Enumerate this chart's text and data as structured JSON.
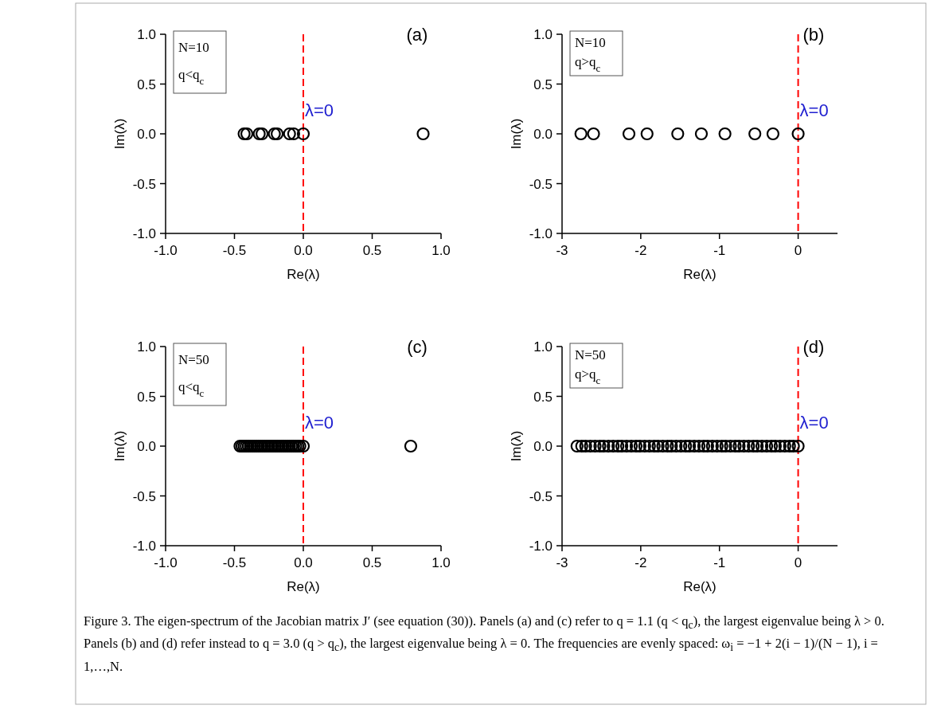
{
  "chart_data": [
    {
      "type": "scatter",
      "xlabel": "Re(λ)",
      "ylabel": "Im(λ)",
      "marker": "circle",
      "grid": false,
      "xlim": [
        -1,
        1
      ],
      "xticks": [
        {
          "value": -1,
          "label": "-1.0"
        },
        {
          "value": -0.5,
          "label": "-0.5"
        },
        {
          "value": 0,
          "label": "0.0"
        },
        {
          "value": 0.5,
          "label": "0.5"
        },
        {
          "value": 1,
          "label": "1.0"
        }
      ],
      "ylim": [
        -1,
        1
      ],
      "yticks": [
        {
          "value": -1,
          "label": "-1.0"
        },
        {
          "value": -0.5,
          "label": "-0.5"
        },
        {
          "value": 0,
          "label": "0.0"
        },
        {
          "value": 0.5,
          "label": "0.5"
        },
        {
          "value": 1,
          "label": "1.0"
        }
      ],
      "series": [
        {
          "color": "#000000",
          "x": [
            -0.43,
            -0.41,
            -0.32,
            -0.3,
            -0.21,
            -0.19,
            -0.1,
            -0.07,
            0.0,
            0.87
          ],
          "values": [
            0,
            0,
            0,
            0,
            0,
            0,
            0,
            0,
            0,
            0
          ]
        }
      ],
      "ref_lines": [
        {
          "axis": "x",
          "value": 0,
          "label": "λ=0",
          "color": "#ff0000",
          "line_style": "dashed"
        }
      ],
      "annotations": [
        "(a)",
        "N=10",
        "q<q$_{c}$"
      ]
    },
    {
      "type": "scatter",
      "xlabel": "Re(λ)",
      "ylabel": "Im(λ)",
      "marker": "circle",
      "grid": false,
      "xlim": [
        -3,
        0.5
      ],
      "xticks": [
        -3,
        -2,
        -1,
        0
      ],
      "ylim": [
        -1,
        1
      ],
      "yticks": [
        {
          "value": -1,
          "label": "-1.0"
        },
        {
          "value": -0.5,
          "label": "-0.5"
        },
        {
          "value": 0,
          "label": "0.0"
        },
        {
          "value": 0.5,
          "label": "0.5"
        },
        {
          "value": 1,
          "label": "1.0"
        }
      ],
      "series": [
        {
          "color": "#000000",
          "x": [
            -2.76,
            -2.6,
            -2.15,
            -1.92,
            -1.53,
            -1.23,
            -0.93,
            -0.55,
            -0.32,
            0.0
          ],
          "values": [
            0,
            0,
            0,
            0,
            0,
            0,
            0,
            0,
            0,
            0
          ]
        }
      ],
      "ref_lines": [
        {
          "axis": "x",
          "value": 0,
          "label": "λ=0",
          "color": "#ff0000",
          "line_style": "dashed"
        }
      ],
      "annotations": [
        "(b)",
        "N=10",
        "q>q$_{c}$"
      ]
    },
    {
      "type": "scatter",
      "xlabel": "Re(λ)",
      "ylabel": "Im(λ)",
      "marker": "circle",
      "grid": false,
      "xlim": [
        -1,
        1
      ],
      "xticks": [
        {
          "value": -1,
          "label": "-1.0"
        },
        {
          "value": -0.5,
          "label": "-0.5"
        },
        {
          "value": 0,
          "label": "0.0"
        },
        {
          "value": 0.5,
          "label": "0.5"
        },
        {
          "value": 1,
          "label": "1.0"
        }
      ],
      "ylim": [
        -1,
        1
      ],
      "yticks": [
        {
          "value": -1,
          "label": "-1.0"
        },
        {
          "value": -0.5,
          "label": "-0.5"
        },
        {
          "value": 0,
          "label": "0.0"
        },
        {
          "value": 0.5,
          "label": "0.5"
        },
        {
          "value": 1,
          "label": "1.0"
        }
      ],
      "series": [
        {
          "color": "#000000",
          "x": [
            -0.46,
            -0.445,
            -0.43,
            -0.415,
            -0.4,
            -0.385,
            -0.37,
            -0.355,
            -0.34,
            -0.325,
            -0.31,
            -0.295,
            -0.28,
            -0.265,
            -0.25,
            -0.235,
            -0.22,
            -0.205,
            -0.19,
            -0.175,
            -0.16,
            -0.145,
            -0.13,
            -0.115,
            -0.1,
            -0.085,
            -0.07,
            -0.055,
            -0.04,
            -0.025,
            0.0,
            0.78
          ],
          "values": [
            0,
            0,
            0,
            0,
            0,
            0,
            0,
            0,
            0,
            0,
            0,
            0,
            0,
            0,
            0,
            0,
            0,
            0,
            0,
            0,
            0,
            0,
            0,
            0,
            0,
            0,
            0,
            0,
            0,
            0,
            0,
            0
          ]
        }
      ],
      "ref_lines": [
        {
          "axis": "x",
          "value": 0,
          "label": "λ=0",
          "color": "#ff0000",
          "line_style": "dashed"
        }
      ],
      "annotations": [
        "(c)",
        "N=50",
        "q<q$_{c}$"
      ]
    },
    {
      "type": "scatter",
      "xlabel": "Re(λ)",
      "ylabel": "Im(λ)",
      "marker": "circle",
      "grid": false,
      "xlim": [
        -3,
        0.5
      ],
      "xticks": [
        -3,
        -2,
        -1,
        0
      ],
      "ylim": [
        -1,
        1
      ],
      "yticks": [
        {
          "value": -1,
          "label": "-1.0"
        },
        {
          "value": -0.5,
          "label": "-0.5"
        },
        {
          "value": 0,
          "label": "0.0"
        },
        {
          "value": 0.5,
          "label": "0.5"
        },
        {
          "value": 1,
          "label": "1.0"
        }
      ],
      "series": [
        {
          "color": "#000000",
          "x": [
            -2.81,
            -2.75,
            -2.7,
            -2.64,
            -2.58,
            -2.52,
            -2.47,
            -2.41,
            -2.35,
            -2.29,
            -2.24,
            -2.18,
            -2.12,
            -2.06,
            -2.01,
            -1.95,
            -1.89,
            -1.83,
            -1.78,
            -1.72,
            -1.66,
            -1.61,
            -1.55,
            -1.49,
            -1.43,
            -1.38,
            -1.32,
            -1.26,
            -1.2,
            -1.15,
            -1.09,
            -1.03,
            -0.97,
            -0.92,
            -0.86,
            -0.8,
            -0.75,
            -0.69,
            -0.63,
            -0.57,
            -0.52,
            -0.46,
            -0.4,
            -0.34,
            -0.29,
            -0.23,
            -0.17,
            -0.11,
            -0.06,
            0.0
          ],
          "values": [
            0,
            0,
            0,
            0,
            0,
            0,
            0,
            0,
            0,
            0,
            0,
            0,
            0,
            0,
            0,
            0,
            0,
            0,
            0,
            0,
            0,
            0,
            0,
            0,
            0,
            0,
            0,
            0,
            0,
            0,
            0,
            0,
            0,
            0,
            0,
            0,
            0,
            0,
            0,
            0,
            0,
            0,
            0,
            0,
            0,
            0,
            0,
            0,
            0,
            0
          ]
        }
      ],
      "ref_lines": [
        {
          "axis": "x",
          "value": 0,
          "label": "λ=0",
          "color": "#ff0000",
          "line_style": "dashed"
        }
      ],
      "annotations": [
        "(d)",
        "N=50",
        "q>q$_{c}$",
        "Figure 3. The eigen-spectrum of the Jacobian matrix J′ (see equation (30)). Panels (a) and (c) refer to q = 1.1 (q < q$_{c}$), the largest eigenvalue being λ > 0. Panels (b) and (d) refer instead to q = 3.0 (q > q$_{c}$), the largest eigenvalue being λ = 0. The frequencies are evenly spaced: ω$_{i}$ = −1 + 2(i − 1)/(N − 1), i = 1,…,N."
      ]
    }
  ]
}
